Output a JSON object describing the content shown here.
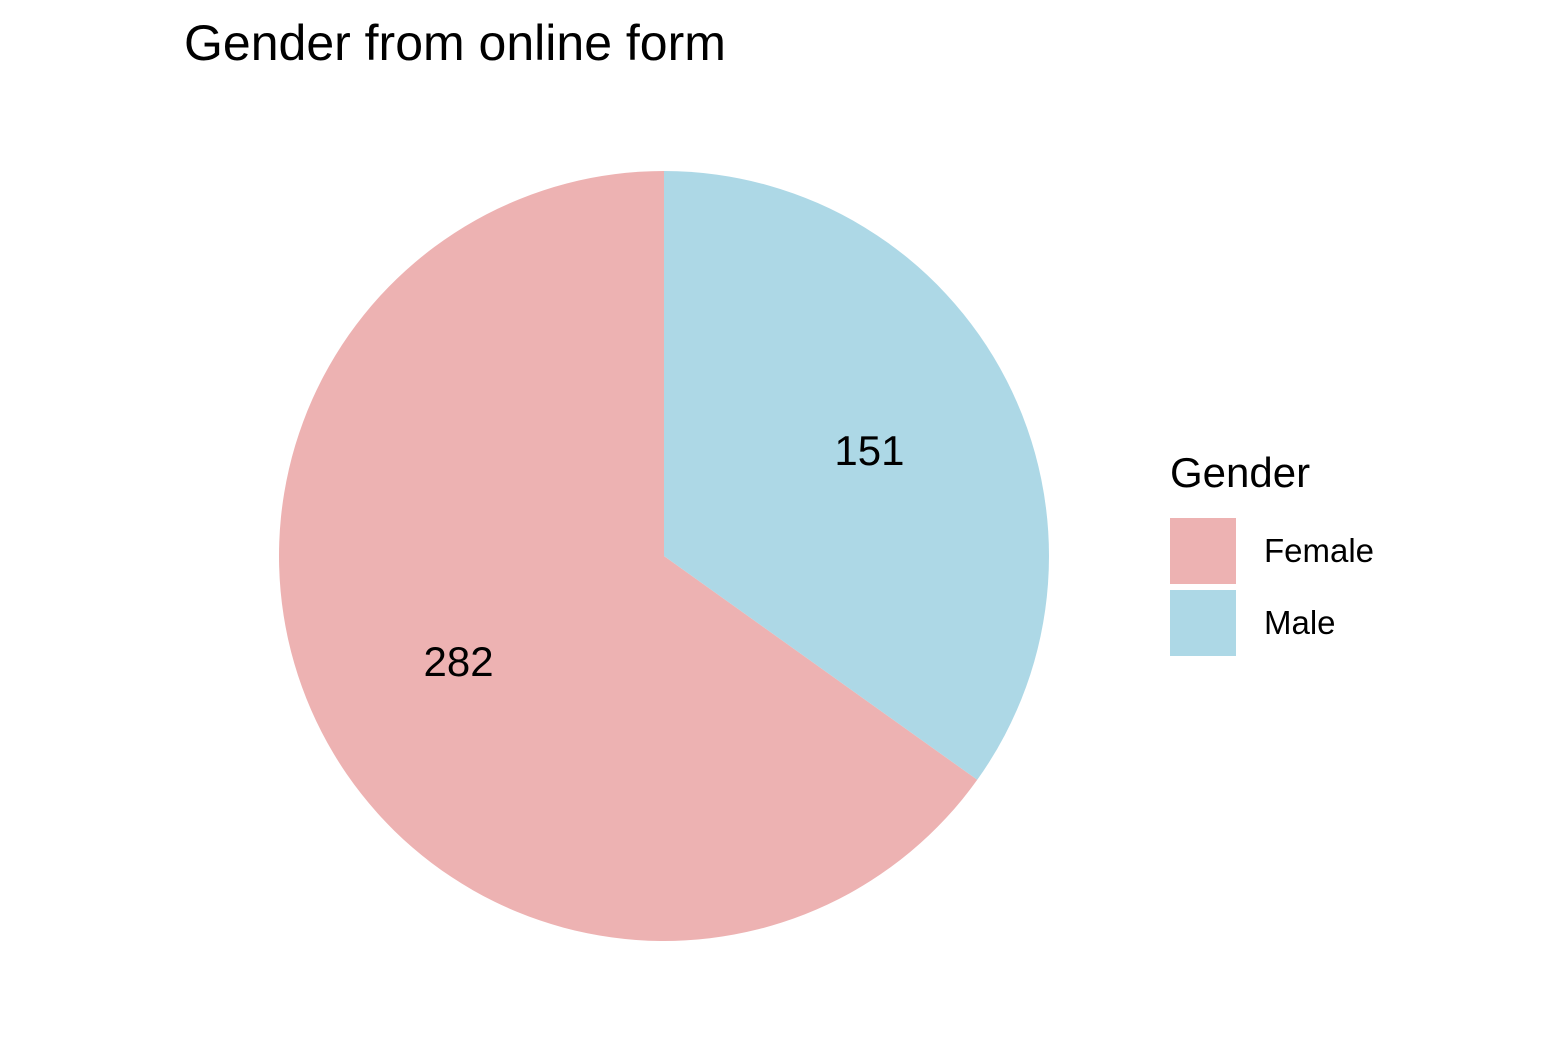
{
  "chart_data": {
    "type": "pie",
    "title": "Gender from online form",
    "categories": [
      "Female",
      "Male"
    ],
    "values": [
      282,
      151
    ],
    "colors": [
      "#EDB2B2",
      "#ADD8E6"
    ],
    "data_labels": [
      "282",
      "151"
    ],
    "legend": {
      "title": "Gender",
      "position": "right",
      "entries": [
        "Female",
        "Male"
      ]
    },
    "start_angle": "12 o'clock",
    "direction": "counterclockwise"
  }
}
